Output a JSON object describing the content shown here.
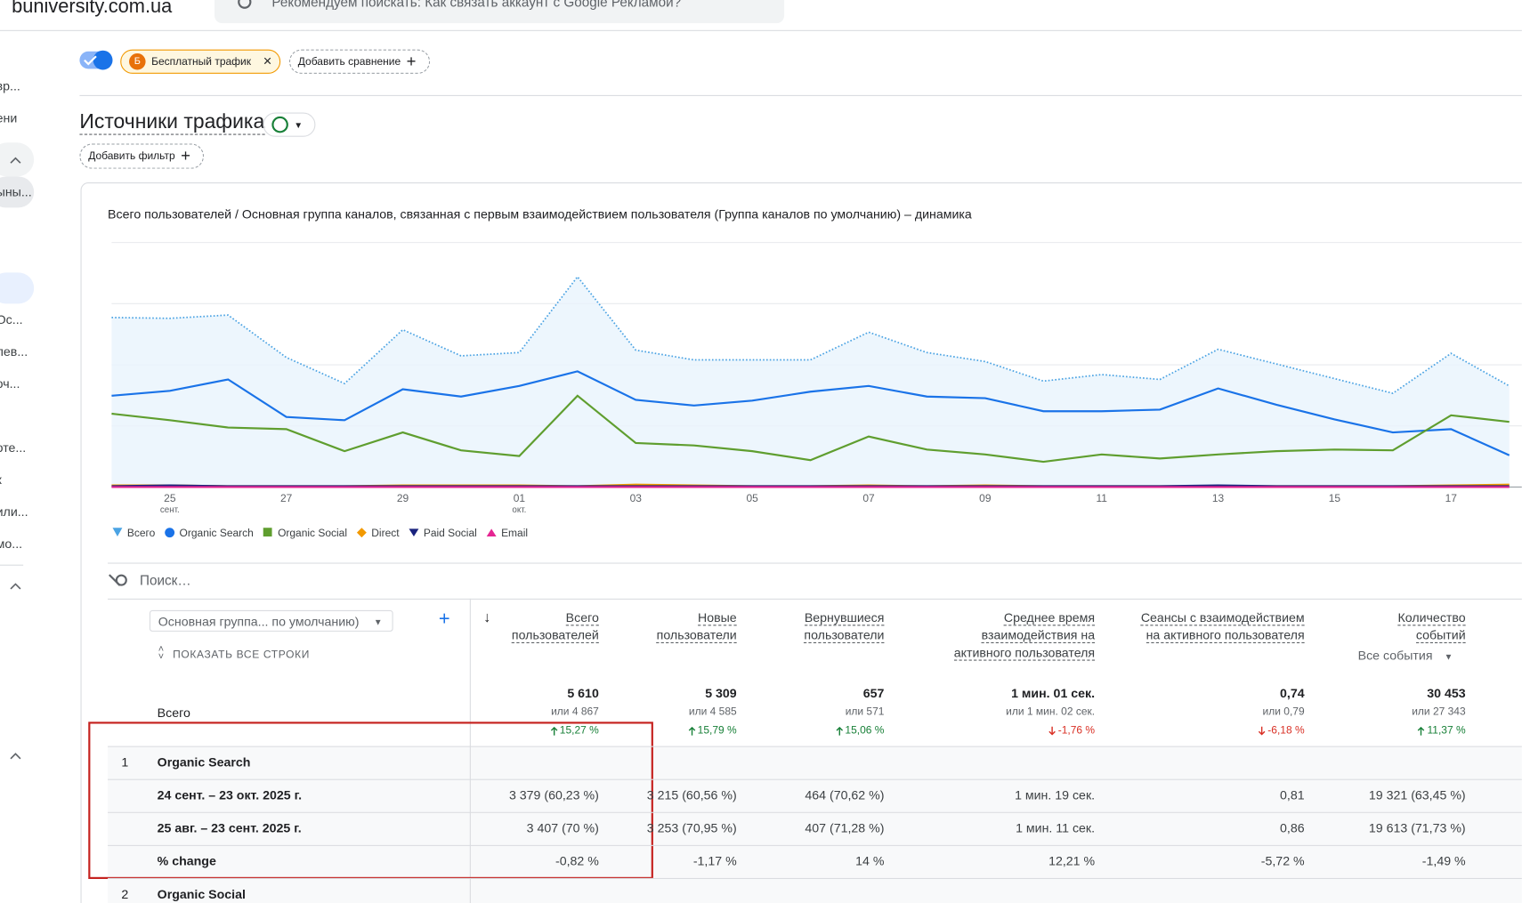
{
  "header": {
    "site": "buniversity.com.ua",
    "search": "Рекомендуем поискать:  Как связать аккаунт с Google Рекламой?"
  },
  "sidebar": {
    "items": [
      "вр...",
      "ени",
      "ыны...",
      "Ос...",
      "лев...",
      "оч...",
      "оте...",
      "к",
      "или...",
      "мо..."
    ]
  },
  "filters": {
    "segment_badge": "Б",
    "segment": "Бесплатный трафик",
    "add_comparison": "Добавить сравнение"
  },
  "report": {
    "title": "Источники трафика",
    "add_filter": "Добавить фильтр"
  },
  "chart_data": {
    "type": "line",
    "title": "Всего пользователей / Основная группа каналов, связанная с первым взаимодействием пользователя (Группа каналов по умолчанию) – динамика",
    "categories": [
      null,
      "25",
      null,
      "27",
      null,
      "29",
      null,
      "01",
      null,
      "03",
      null,
      "05",
      null,
      "07",
      null,
      "09",
      null,
      "11",
      null,
      "13",
      null,
      "15",
      null,
      "17",
      null
    ],
    "category_sublabels": [
      null,
      "сент.",
      null,
      null,
      null,
      null,
      null,
      "окт.",
      null,
      null,
      null,
      null,
      null,
      null,
      null,
      null,
      null,
      null,
      null,
      null,
      null,
      null,
      null,
      null,
      null
    ],
    "ylim": [
      0,
      300
    ],
    "gridlines": [
      0,
      75,
      150,
      225,
      300
    ],
    "series": [
      {
        "name": "Всего",
        "color": "#4ba3e3",
        "marker": "drop",
        "style": "dotted",
        "area": true,
        "values": [
          208,
          207,
          211,
          159,
          127,
          193,
          161,
          165,
          258,
          168,
          156,
          156,
          156,
          190,
          165,
          154,
          130,
          138,
          132,
          169,
          151,
          133,
          115,
          164,
          124
        ]
      },
      {
        "name": "Organic Search",
        "color": "#1a73e8",
        "marker": "circle",
        "values": [
          112,
          118,
          132,
          86,
          82,
          120,
          111,
          124,
          142,
          107,
          100,
          106,
          117,
          124,
          111,
          109,
          93,
          93,
          95,
          121,
          101,
          83,
          67,
          71,
          39
        ]
      },
      {
        "name": "Organic Social",
        "color": "#5f9e2f",
        "marker": "square",
        "values": [
          90,
          82,
          73,
          71,
          44,
          67,
          45,
          38,
          112,
          54,
          51,
          44,
          33,
          62,
          46,
          40,
          31,
          40,
          35,
          40,
          44,
          46,
          45,
          88,
          80
        ]
      },
      {
        "name": "Direct",
        "color": "#f29900",
        "marker": "diamond",
        "values": [
          2,
          2,
          1,
          1,
          1,
          2,
          2,
          2,
          1,
          3,
          2,
          1,
          1,
          2,
          1,
          2,
          1,
          1,
          1,
          1,
          1,
          1,
          1,
          2,
          3
        ]
      },
      {
        "name": "Paid Social",
        "color": "#1a237e",
        "marker": "triangle-down",
        "values": [
          1,
          2,
          1,
          1,
          1,
          1,
          1,
          1,
          1,
          1,
          1,
          1,
          1,
          1,
          1,
          1,
          1,
          1,
          1,
          2,
          1,
          1,
          1,
          1,
          1
        ]
      },
      {
        "name": "Email",
        "color": "#e52592",
        "marker": "triangle-up",
        "values": [
          0,
          0,
          0,
          0,
          0,
          0,
          0,
          0,
          0,
          0,
          0,
          0,
          0,
          0,
          0,
          0,
          0,
          0,
          0,
          0,
          0,
          0,
          0,
          0,
          0
        ]
      }
    ]
  },
  "table": {
    "search": "Поиск…",
    "dimension": "Основная группа... по умолчанию)",
    "show_all_rows": "ПОКАЗАТЬ ВСЕ СТРОКИ",
    "events_selector": "Все события",
    "total_label": "Всего",
    "columns": [
      [
        "Всего",
        "пользователей"
      ],
      [
        "Новые",
        "пользователи"
      ],
      [
        "Вернувшиеся",
        "пользователи"
      ],
      [
        "Среднее время",
        "взаимодействия на",
        "активного пользователя"
      ],
      [
        "Сеансы с взаимодействием",
        "на активного пользователя"
      ],
      [
        "Количество",
        "событий"
      ]
    ],
    "totals": [
      {
        "value": "5 610",
        "compare": "или 4 867",
        "change": "15,27 %",
        "direction": "up"
      },
      {
        "value": "5 309",
        "compare": "или 4 585",
        "change": "15,79 %",
        "direction": "up"
      },
      {
        "value": "657",
        "compare": "или 571",
        "change": "15,06 %",
        "direction": "up"
      },
      {
        "value": "1 мин. 01 сек.",
        "compare": "или 1 мин. 02 сек.",
        "change": "-1,76 %",
        "direction": "down"
      },
      {
        "value": "0,74",
        "compare": "или 0,79",
        "change": "-6,18 %",
        "direction": "down"
      },
      {
        "value": "30 453",
        "compare": "или 27 343",
        "change": "11,37 %",
        "direction": "up"
      }
    ],
    "rows": [
      {
        "index": "1",
        "name": "Organic Search",
        "subrows": [
          [
            "24 сент. – 23 окт. 2025 г.",
            "3 379 (60,23 %)",
            "3 215 (60,56 %)",
            "464 (70,62 %)",
            "1 мин. 19 сек.",
            "0,81",
            "19 321 (63,45 %)"
          ],
          [
            "25 авг. – 23 сент. 2025 г.",
            "3 407 (70 %)",
            "3 253 (70,95 %)",
            "407 (71,28 %)",
            "1 мин. 11 сек.",
            "0,86",
            "19 613 (71,73 %)"
          ],
          [
            "% change",
            "-0,82 %",
            "-1,17 %",
            "14 %",
            "12,21 %",
            "-5,72 %",
            "-1,49 %"
          ]
        ]
      },
      {
        "index": "2",
        "name": "Organic Social",
        "subrows": []
      }
    ]
  }
}
